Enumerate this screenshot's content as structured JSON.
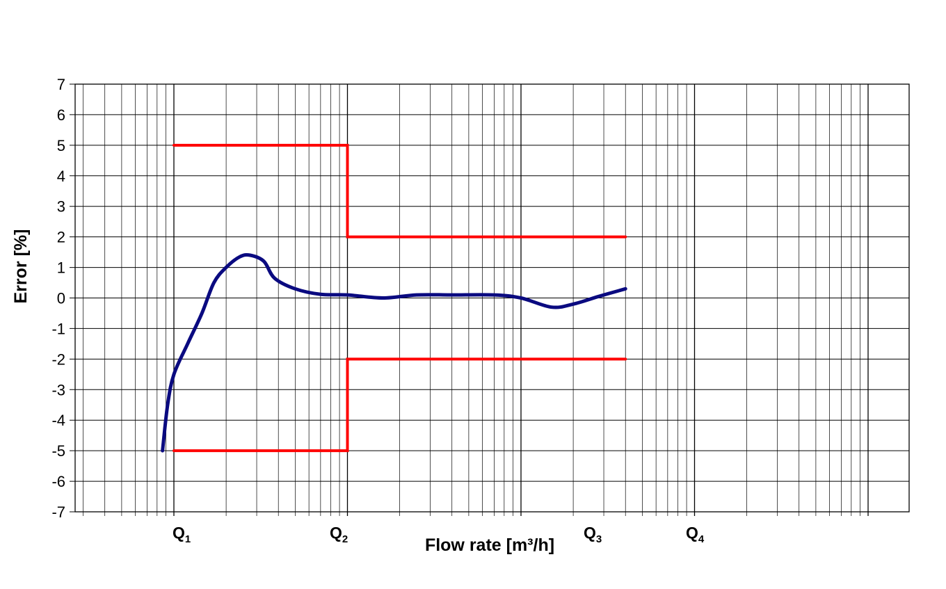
{
  "chart_data": {
    "type": "line",
    "title": "",
    "xlabel": "Flow rate [m³/h]",
    "ylabel": "Error [%]",
    "x_scale": "log",
    "ylim": [
      -7,
      7
    ],
    "y_ticks": [
      "7",
      "6",
      "5",
      "4",
      "3",
      "2",
      "1",
      "0",
      "-1",
      "-2",
      "-3",
      "-4",
      "-5",
      "-6",
      "-7"
    ],
    "grid": true,
    "x_markers": [
      {
        "label": "Q",
        "sub": "1"
      },
      {
        "label": "Q",
        "sub": "2"
      },
      {
        "label": "Q",
        "sub": "3"
      },
      {
        "label": "Q",
        "sub": "4"
      }
    ],
    "colors": {
      "error_curve": "#0a0a80",
      "limits": "#ff0000",
      "grid": "#000000"
    },
    "series": [
      {
        "key": "error_curve",
        "points": [
          {
            "x": 0.86,
            "y": -5.0
          },
          {
            "x": 0.92,
            "y": -3.5
          },
          {
            "x": 1.0,
            "y": -2.5
          },
          {
            "x": 1.2,
            "y": -1.5
          },
          {
            "x": 1.45,
            "y": -0.5
          },
          {
            "x": 1.7,
            "y": 0.5
          },
          {
            "x": 2.0,
            "y": 1.0
          },
          {
            "x": 2.4,
            "y": 1.35
          },
          {
            "x": 2.75,
            "y": 1.4
          },
          {
            "x": 3.3,
            "y": 1.2
          },
          {
            "x": 3.8,
            "y": 0.65
          },
          {
            "x": 5.0,
            "y": 0.3
          },
          {
            "x": 7.0,
            "y": 0.12
          },
          {
            "x": 10.0,
            "y": 0.1
          },
          {
            "x": 16.0,
            "y": 0.0
          },
          {
            "x": 25.0,
            "y": 0.1
          },
          {
            "x": 40.0,
            "y": 0.1
          },
          {
            "x": 70.0,
            "y": 0.1
          },
          {
            "x": 100.0,
            "y": 0.0
          },
          {
            "x": 150.0,
            "y": -0.3
          },
          {
            "x": 200.0,
            "y": -0.2
          },
          {
            "x": 280.0,
            "y": 0.05
          },
          {
            "x": 400.0,
            "y": 0.3
          }
        ]
      },
      {
        "key": "upper_limit",
        "points": [
          {
            "x": 1.0,
            "y": 5
          },
          {
            "x": 10.0,
            "y": 5
          },
          {
            "x": 10.0,
            "y": 2
          },
          {
            "x": 400.0,
            "y": 2
          }
        ]
      },
      {
        "key": "lower_limit",
        "points": [
          {
            "x": 1.0,
            "y": -5
          },
          {
            "x": 10.0,
            "y": -5
          },
          {
            "x": 10.0,
            "y": -2
          },
          {
            "x": 400.0,
            "y": -2
          }
        ]
      }
    ]
  }
}
